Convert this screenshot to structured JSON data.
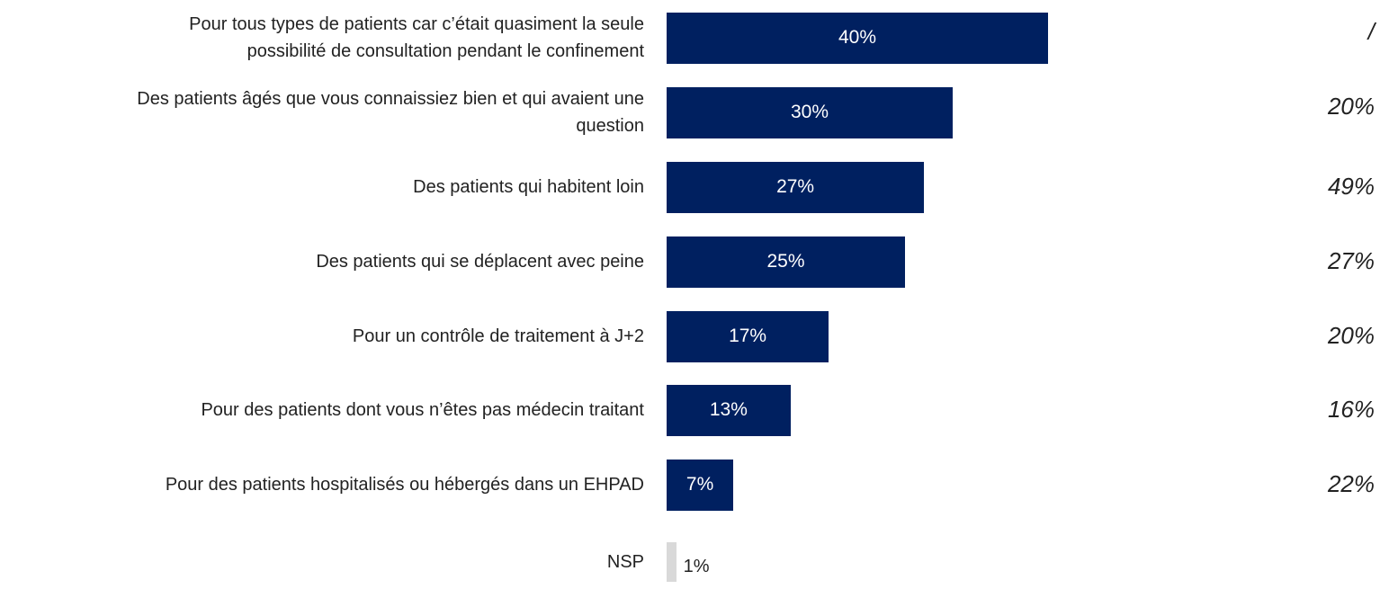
{
  "chart_data": {
    "type": "bar",
    "orientation": "horizontal",
    "categories": [
      "Pour tous types de patients car c’était quasiment la seule\npossibilité de consultation pendant le confinement",
      "Des patients âgés que vous connaissiez bien et qui avaient une\nquestion",
      "Des patients qui habitent loin",
      "Des patients qui se déplacent avec peine",
      "Pour un contrôle de traitement à J+2",
      "Pour des patients dont vous n’êtes pas médecin traitant",
      "Pour des patients hospitalisés ou hébergés dans un EHPAD",
      "NSP"
    ],
    "values": [
      40,
      30,
      27,
      25,
      17,
      13,
      7,
      1
    ],
    "value_labels": [
      "40%",
      "30%",
      "27%",
      "25%",
      "17%",
      "13%",
      "7%",
      "1%"
    ],
    "colors": [
      "#002060",
      "#002060",
      "#002060",
      "#002060",
      "#002060",
      "#002060",
      "#002060",
      "#d9d9d9"
    ],
    "comparison_labels": [
      "/",
      "20%",
      "49%",
      "27%",
      "20%",
      "16%",
      "22%",
      null
    ]
  }
}
